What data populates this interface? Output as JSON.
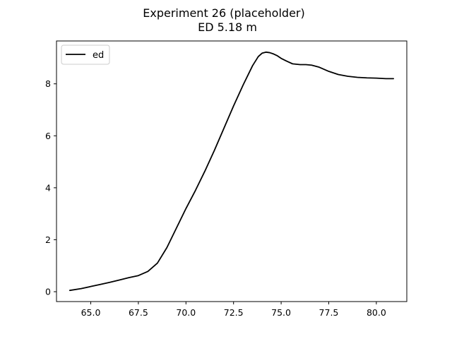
{
  "chart_data": {
    "type": "line",
    "title": "Experiment 26 (placeholder)",
    "subtitle": "ED 5.18 m",
    "xlabel": "",
    "ylabel": "",
    "xlim": [
      63.2,
      81.6
    ],
    "ylim": [
      -0.38,
      9.65
    ],
    "xticks": [
      65.0,
      67.5,
      70.0,
      72.5,
      75.0,
      77.5,
      80.0
    ],
    "xtick_labels": [
      "65.0",
      "67.5",
      "70.0",
      "72.5",
      "75.0",
      "77.5",
      "80.0"
    ],
    "yticks": [
      0,
      2,
      4,
      6,
      8
    ],
    "ytick_labels": [
      "0",
      "2",
      "4",
      "6",
      "8"
    ],
    "grid": false,
    "legend_position": "top-left",
    "series": [
      {
        "name": "ed",
        "color": "#000000",
        "x": [
          63.9,
          64.5,
          65.0,
          65.5,
          66.0,
          66.5,
          67.0,
          67.5,
          68.0,
          68.5,
          69.0,
          69.5,
          70.0,
          70.5,
          71.0,
          71.5,
          72.0,
          72.5,
          73.0,
          73.5,
          73.8,
          74.0,
          74.2,
          74.4,
          74.6,
          74.8,
          75.0,
          75.3,
          75.6,
          76.0,
          76.3,
          76.6,
          77.0,
          77.5,
          78.0,
          78.5,
          79.0,
          79.5,
          80.0,
          80.5,
          80.9
        ],
        "y": [
          0.05,
          0.12,
          0.2,
          0.28,
          0.36,
          0.45,
          0.54,
          0.62,
          0.78,
          1.1,
          1.7,
          2.45,
          3.2,
          3.9,
          4.65,
          5.45,
          6.3,
          7.15,
          7.95,
          8.7,
          9.05,
          9.18,
          9.22,
          9.2,
          9.15,
          9.08,
          8.98,
          8.87,
          8.77,
          8.74,
          8.74,
          8.72,
          8.64,
          8.48,
          8.36,
          8.29,
          8.25,
          8.23,
          8.22,
          8.2,
          8.2
        ]
      }
    ]
  }
}
